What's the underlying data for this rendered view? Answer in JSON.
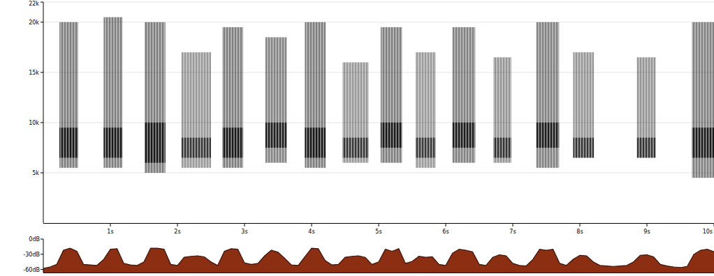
{
  "chart_data": [
    {
      "type": "spectrogram",
      "xlim": [
        0,
        10
      ],
      "xticks": [
        {
          "value": 1,
          "label": "1s"
        },
        {
          "value": 2,
          "label": "2s"
        },
        {
          "value": 3,
          "label": "3s"
        },
        {
          "value": 4,
          "label": "4s"
        },
        {
          "value": 5,
          "label": "5s"
        },
        {
          "value": 6,
          "label": "6s"
        },
        {
          "value": 7,
          "label": "7s"
        },
        {
          "value": 8,
          "label": "8s"
        },
        {
          "value": 9,
          "label": "9s"
        },
        {
          "value": 10,
          "label": "10s"
        }
      ],
      "ylim": [
        0,
        22000
      ],
      "yticks": [
        {
          "value": 5000,
          "label": "5k"
        },
        {
          "value": 10000,
          "label": "10k"
        },
        {
          "value": 15000,
          "label": "15k"
        },
        {
          "value": 20000,
          "label": "20k"
        },
        {
          "value": 22000,
          "label": "22k"
        }
      ],
      "grid": true,
      "color": "#000000",
      "syllables": {
        "start": [
          0.24,
          0.9,
          1.51,
          2.06,
          2.67,
          3.31,
          3.9,
          4.46,
          5.03,
          5.55,
          6.1,
          6.71,
          7.35,
          7.9,
          8.85,
          9.67
        ],
        "end": [
          0.52,
          1.18,
          1.82,
          2.5,
          2.98,
          3.63,
          4.21,
          4.85,
          5.35,
          5.85,
          6.44,
          6.98,
          7.69,
          8.21,
          9.13,
          10.0
        ],
        "low": [
          5500,
          5500,
          5000,
          5500,
          5500,
          6000,
          5500,
          6000,
          6000,
          5500,
          6000,
          6000,
          5500,
          6500,
          6500,
          4500
        ],
        "high": [
          20000,
          20500,
          20000,
          17000,
          19500,
          18500,
          20000,
          16000,
          19500,
          17000,
          19500,
          16500,
          20000,
          17000,
          16500,
          20000
        ],
        "band_low": [
          6500,
          6500,
          6000,
          6500,
          6500,
          7500,
          6500,
          6500,
          7500,
          6500,
          7500,
          6500,
          7500,
          6500,
          6500,
          6500
        ],
        "band_high": [
          9500,
          9500,
          10000,
          8500,
          9500,
          10000,
          9500,
          8500,
          10000,
          8500,
          10000,
          8500,
          10000,
          8500,
          8500,
          9500
        ],
        "peak": [
          -18,
          -19,
          -18,
          -33,
          -19,
          -22,
          -18,
          -33,
          -19,
          -34,
          -20,
          -31,
          -20,
          -32,
          -31,
          -20
        ]
      }
    },
    {
      "type": "area",
      "x": [
        0,
        0.1,
        0.2,
        0.3,
        0.4,
        0.5,
        0.6,
        0.7,
        0.8,
        0.9,
        1.0,
        1.1,
        1.2,
        1.3,
        1.4,
        1.5,
        1.6,
        1.7,
        1.8,
        1.9,
        2.0,
        2.1,
        2.2,
        2.3,
        2.4,
        2.5,
        2.6,
        2.7,
        2.8,
        2.9,
        3.0,
        3.1,
        3.2,
        3.3,
        3.4,
        3.5,
        3.6,
        3.7,
        3.8,
        3.9,
        4.0,
        4.1,
        4.2,
        4.3,
        4.4,
        4.5,
        4.6,
        4.7,
        4.8,
        4.9,
        5.0,
        5.1,
        5.2,
        5.3,
        5.4,
        5.5,
        5.6,
        5.7,
        5.8,
        5.9,
        6.0,
        6.1,
        6.2,
        6.3,
        6.4,
        6.5,
        6.6,
        6.7,
        6.8,
        6.9,
        7.0,
        7.1,
        7.2,
        7.3,
        7.4,
        7.5,
        7.6,
        7.7,
        7.8,
        7.9,
        8.0,
        8.1,
        8.2,
        8.3,
        8.4,
        8.5,
        8.6,
        8.7,
        8.8,
        8.9,
        9.0,
        9.1,
        9.2,
        9.3,
        9.4,
        9.5,
        9.6,
        9.7,
        9.8,
        9.9,
        10.0
      ],
      "values": [
        -58,
        -55,
        -50,
        -22,
        -18,
        -24,
        -50,
        -51,
        -52,
        -40,
        -20,
        -19,
        -48,
        -51,
        -52,
        -45,
        -18,
        -18,
        -20,
        -50,
        -52,
        -36,
        -34,
        -33,
        -35,
        -45,
        -52,
        -24,
        -19,
        -20,
        -47,
        -50,
        -48,
        -33,
        -22,
        -26,
        -38,
        -51,
        -52,
        -35,
        -18,
        -19,
        -42,
        -51,
        -50,
        -36,
        -34,
        -33,
        -36,
        -50,
        -45,
        -20,
        -24,
        -19,
        -48,
        -44,
        -34,
        -36,
        -35,
        -50,
        -52,
        -28,
        -20,
        -22,
        -25,
        -50,
        -52,
        -36,
        -31,
        -33,
        -48,
        -52,
        -53,
        -40,
        -20,
        -22,
        -20,
        -48,
        -52,
        -40,
        -32,
        -33,
        -45,
        -52,
        -53,
        -54,
        -53,
        -52,
        -45,
        -32,
        -31,
        -35,
        -50,
        -53,
        -55,
        -56,
        -54,
        -30,
        -22,
        -20,
        -25
      ],
      "xlim": [
        0,
        10
      ],
      "ylim": [
        -66,
        0
      ],
      "yticks": [
        {
          "value": 0,
          "label": "0dB"
        },
        {
          "value": -30,
          "label": "-30dB"
        },
        {
          "value": -60,
          "label": "-60dB"
        }
      ],
      "tick_labels": "y",
      "color": "#8b2e12"
    }
  ]
}
